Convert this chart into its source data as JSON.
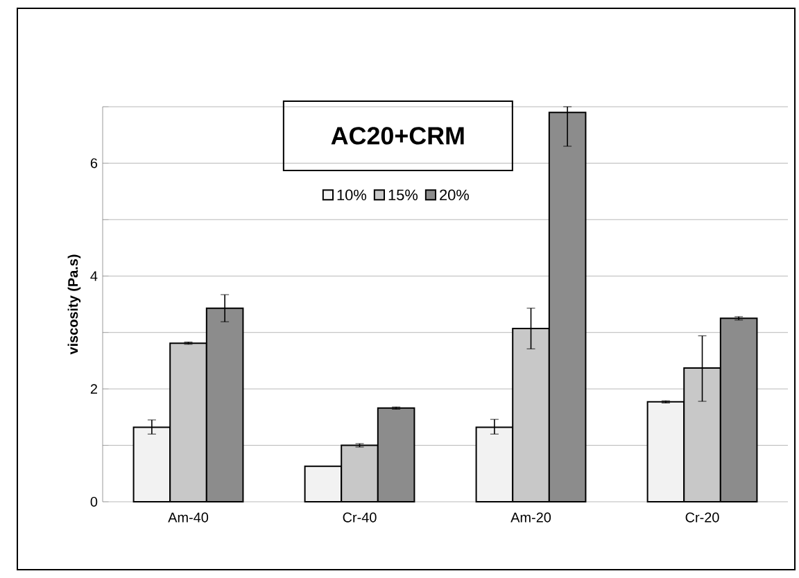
{
  "chart_data": {
    "type": "bar",
    "title": "AC20+CRM",
    "ylabel": "viscosity (Pa.s)",
    "categories": [
      "Am-40",
      "Cr-40",
      "Am-20",
      "Cr-20"
    ],
    "series": [
      {
        "name": "10%",
        "color": "#f2f2f2",
        "values": [
          1.32,
          0.63,
          1.32,
          1.77
        ],
        "errors": [
          [
            1.2,
            1.45
          ],
          null,
          [
            1.2,
            1.46
          ],
          [
            1.75,
            1.79
          ]
        ]
      },
      {
        "name": "15%",
        "color": "#c8c8c8",
        "values": [
          2.81,
          1.0,
          3.07,
          2.37
        ],
        "errors": [
          [
            2.79,
            2.83
          ],
          [
            0.97,
            1.03
          ],
          [
            2.71,
            3.43
          ],
          [
            1.78,
            2.94
          ]
        ]
      },
      {
        "name": "20%",
        "color": "#8c8c8c",
        "values": [
          3.43,
          1.66,
          6.9,
          3.25
        ],
        "errors": [
          [
            3.19,
            3.67
          ],
          [
            1.64,
            1.68
          ],
          [
            6.3,
            7.0
          ],
          [
            3.22,
            3.28
          ]
        ]
      }
    ],
    "ylim": [
      0,
      7
    ],
    "yticks": [
      0,
      {
        "value": 1,
        "label": null
      },
      2,
      {
        "value": 3,
        "label": null
      },
      4,
      {
        "value": 5,
        "label": null
      },
      6,
      {
        "value": 7,
        "label": null
      }
    ],
    "grid": "y",
    "legend": "top"
  }
}
